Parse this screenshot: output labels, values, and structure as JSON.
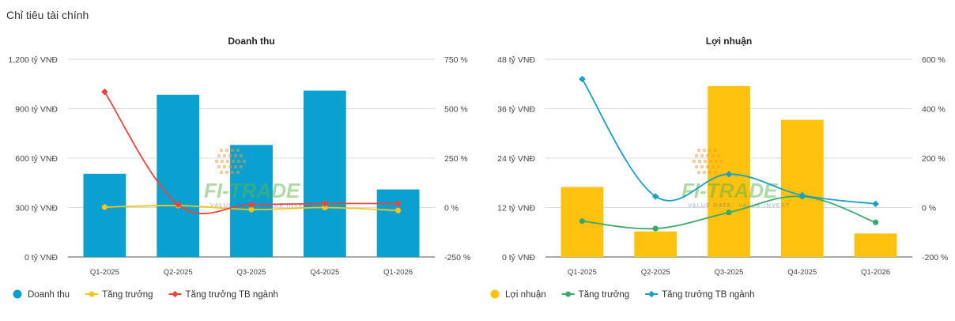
{
  "page": {
    "title": "Chỉ tiêu tài chính"
  },
  "watermark": {
    "brand": "FI-TRADE",
    "tagline": "VALUE DATA · VALUE INVEST"
  },
  "chart_data": [
    {
      "type": "bar",
      "title": "Doanh thu",
      "categories": [
        "Q1-2025",
        "Q2-2025",
        "Q3-2025",
        "Q4-2025",
        "Q1-2026"
      ],
      "y_left": {
        "ticks": [
          0,
          300,
          600,
          900,
          1200
        ],
        "tick_labels": [
          "0 tỷ VNĐ",
          "300 tỷ VNĐ",
          "600 tỷ VNĐ",
          "900 tỷ VNĐ",
          "1,200 tỷ VNĐ"
        ],
        "ylim": [
          0,
          1200
        ]
      },
      "y_right": {
        "ticks": [
          -250,
          0,
          250,
          500,
          750
        ],
        "tick_labels": [
          "-250 %",
          "0 %",
          "250 %",
          "500 %",
          "750 %"
        ],
        "ylim": [
          -250,
          750
        ]
      },
      "series": [
        {
          "name": "Doanh thu",
          "kind": "bar",
          "axis": "left",
          "color": "#0aa0d0",
          "values": [
            505,
            985,
            680,
            1010,
            410
          ]
        },
        {
          "name": "Tăng trưởng",
          "kind": "line",
          "axis": "right",
          "color": "#f5c518",
          "values": [
            2,
            10,
            -10,
            0,
            -15
          ]
        },
        {
          "name": "Tăng trưởng TB ngành",
          "kind": "line",
          "axis": "right",
          "color": "#e8463c",
          "values": [
            585,
            15,
            15,
            20,
            20
          ]
        }
      ],
      "legend": "bottom-left",
      "grid": true
    },
    {
      "type": "bar",
      "title": "Lợi nhuận",
      "categories": [
        "Q1-2025",
        "Q2-2025",
        "Q3-2025",
        "Q4-2025",
        "Q1-2026"
      ],
      "y_left": {
        "ticks": [
          0,
          12,
          24,
          36,
          48
        ],
        "tick_labels": [
          "0 tỷ VNĐ",
          "12 tỷ VNĐ",
          "24 tỷ VNĐ",
          "36 tỷ VNĐ",
          "48 tỷ VNĐ"
        ],
        "ylim": [
          0,
          48
        ]
      },
      "y_right": {
        "ticks": [
          -200,
          0,
          200,
          400,
          600
        ],
        "tick_labels": [
          "-200 %",
          "0 %",
          "200 %",
          "400 %",
          "600 %"
        ],
        "ylim": [
          -200,
          600
        ]
      },
      "series": [
        {
          "name": "Lợi nhuận",
          "kind": "bar",
          "axis": "left",
          "color": "#ffc20e",
          "values": [
            17,
            6.2,
            41.5,
            33.3,
            5.7
          ]
        },
        {
          "name": "Tăng trưởng",
          "kind": "line",
          "axis": "right",
          "color": "#3aaa6a",
          "values": [
            -55,
            -85,
            -20,
            45,
            -60
          ]
        },
        {
          "name": "Tăng trưởng TB ngành",
          "kind": "line",
          "axis": "right",
          "color": "#1a9fc5",
          "values": [
            520,
            45,
            135,
            50,
            15
          ]
        }
      ],
      "legend": "bottom-left",
      "grid": true
    }
  ]
}
